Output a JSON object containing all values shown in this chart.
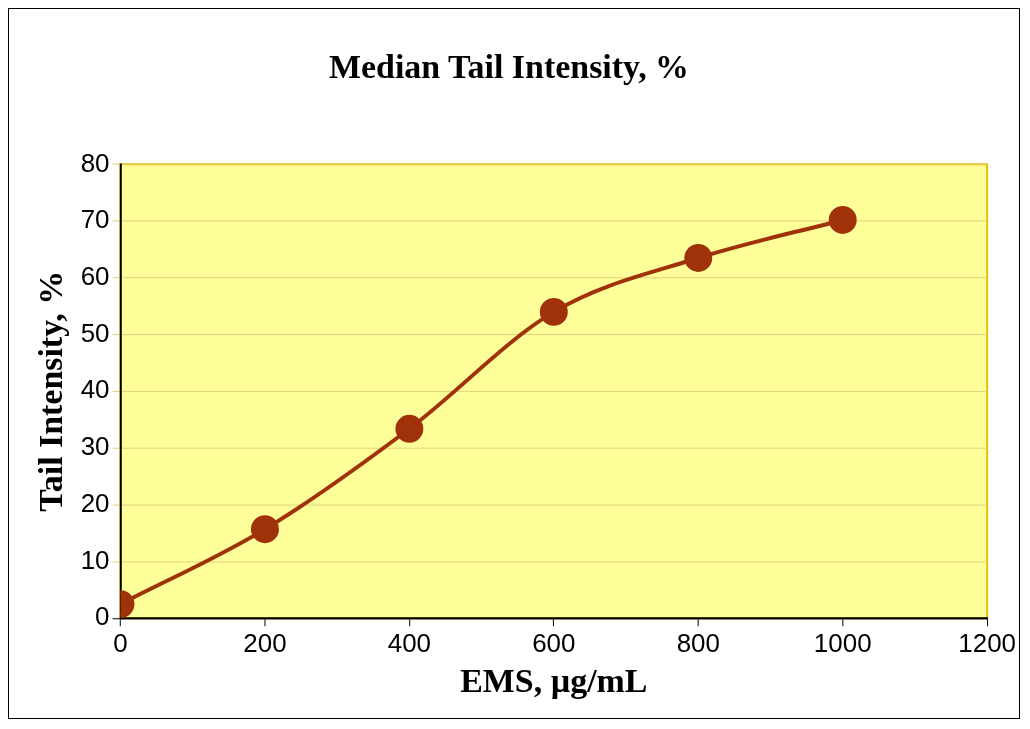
{
  "chart_data": {
    "type": "line",
    "title": "Median Tail Intensity, %",
    "xlabel": "EMS, µg/mL",
    "ylabel": "Tail Intensity, %",
    "x": [
      0,
      200,
      400,
      600,
      800,
      1000
    ],
    "series": [
      {
        "color": "#a0320a",
        "values": [
          2.5,
          15.7,
          33.4,
          54,
          63.5,
          70.2
        ]
      }
    ],
    "xlim": [
      0,
      1200
    ],
    "xticks": [
      0,
      200,
      400,
      600,
      800,
      1000,
      1200
    ],
    "ylim": [
      0,
      80
    ],
    "yticks": [
      0,
      10,
      20,
      30,
      40,
      50,
      60,
      70,
      80
    ],
    "grid": "y",
    "legend": false,
    "marker": "circle",
    "line_style": "solid"
  }
}
